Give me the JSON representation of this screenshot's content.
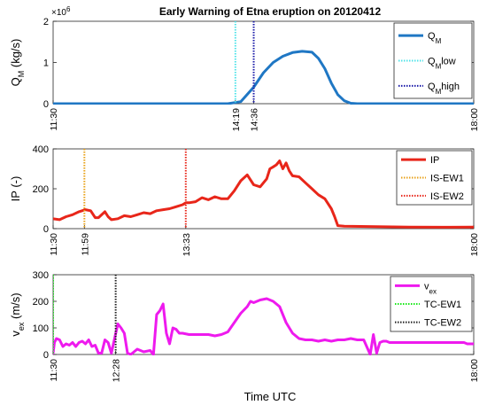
{
  "title": "Early Warning of Etna eruption on 20120412",
  "xlabel": "Time UTC",
  "chart_data": [
    {
      "type": "line",
      "ylabel_main": "Q",
      "ylabel_sub": "M",
      "ylabel_tail": " (kg/s)",
      "exponent_label": "×10",
      "exponent_power": "6",
      "ylim": [
        0,
        2
      ],
      "yticks": [
        "0",
        "1",
        "2"
      ],
      "xlim_hours": [
        11.5,
        18.0
      ],
      "xticks": [
        "11:30",
        "14:19",
        "14:36",
        "18:00"
      ],
      "xtick_hours": [
        11.5,
        14.3167,
        14.6,
        18.0
      ],
      "legend_position": "top-right",
      "series": [
        {
          "name": "Q",
          "name_sub": "M",
          "name_tail": "",
          "style": "solid",
          "color": "#1f77c4",
          "x": [
            11.5,
            14.2,
            14.4,
            14.6,
            14.75,
            14.9,
            15.05,
            15.2,
            15.35,
            15.5,
            15.6,
            15.7,
            15.8,
            15.9,
            16.0,
            16.1,
            16.2,
            16.4,
            18.0
          ],
          "y": [
            0,
            0,
            0.05,
            0.4,
            0.75,
            1.0,
            1.15,
            1.24,
            1.27,
            1.25,
            1.1,
            0.85,
            0.5,
            0.22,
            0.07,
            0.01,
            0,
            0,
            0
          ]
        },
        {
          "name": "Q",
          "name_sub": "M",
          "name_tail": "low",
          "style": "dotted",
          "color": "#4fe3e8",
          "vline_hour": 14.3167
        },
        {
          "name": "Q",
          "name_sub": "M",
          "name_tail": "high",
          "style": "dotted",
          "color": "#1a1aa8",
          "vline_hour": 14.6
        }
      ]
    },
    {
      "type": "line",
      "ylabel_main": "IP (-)",
      "ylabel_sub": "",
      "ylabel_tail": "",
      "ylim": [
        0,
        400
      ],
      "yticks": [
        "0",
        "200",
        "400"
      ],
      "xlim_hours": [
        11.5,
        18.0
      ],
      "xticks": [
        "11:30",
        "11:59",
        "13:33",
        "18:00"
      ],
      "xtick_hours": [
        11.5,
        11.9833,
        13.55,
        18.0
      ],
      "legend_position": "top-right",
      "series": [
        {
          "name": "IP",
          "name_sub": "",
          "name_tail": "",
          "style": "solid",
          "color": "#e8261a",
          "x": [
            11.5,
            11.6,
            11.7,
            11.8,
            11.9,
            12.0,
            12.08,
            12.15,
            12.2,
            12.3,
            12.35,
            12.4,
            12.5,
            12.6,
            12.7,
            12.8,
            12.9,
            13.0,
            13.1,
            13.2,
            13.3,
            13.4,
            13.5,
            13.55,
            13.6,
            13.7,
            13.8,
            13.9,
            14.0,
            14.1,
            14.2,
            14.3,
            14.4,
            14.5,
            14.6,
            14.7,
            14.8,
            14.85,
            14.9,
            14.95,
            15.0,
            15.05,
            15.1,
            15.15,
            15.2,
            15.3,
            15.4,
            15.5,
            15.6,
            15.7,
            15.8,
            15.85,
            15.9,
            16.0,
            16.5,
            17.0,
            17.5,
            18.0
          ],
          "y": [
            50,
            45,
            60,
            70,
            85,
            95,
            90,
            55,
            55,
            85,
            60,
            45,
            50,
            65,
            60,
            70,
            80,
            75,
            90,
            95,
            100,
            110,
            120,
            130,
            130,
            135,
            155,
            145,
            160,
            150,
            150,
            190,
            240,
            270,
            220,
            210,
            250,
            300,
            310,
            320,
            340,
            300,
            330,
            290,
            265,
            260,
            230,
            200,
            170,
            150,
            100,
            60,
            15,
            12,
            10,
            8,
            7,
            8
          ]
        },
        {
          "name": "IS-EW1",
          "name_sub": "",
          "name_tail": "",
          "style": "dotted",
          "color": "#e8a21a",
          "vline_hour": 11.9833
        },
        {
          "name": "IS-EW2",
          "name_sub": "",
          "name_tail": "",
          "style": "dotted",
          "color": "#e8261a",
          "vline_hour": 13.55
        }
      ]
    },
    {
      "type": "line",
      "ylabel_main": "v",
      "ylabel_sub": "ex",
      "ylabel_tail": " (m/s)",
      "ylim": [
        0,
        300
      ],
      "yticks": [
        "0",
        "100",
        "200",
        "300"
      ],
      "xlim_hours": [
        11.5,
        18.0
      ],
      "xticks": [
        "11:30",
        "12:28",
        "18:00"
      ],
      "xtick_hours": [
        11.5,
        12.4667,
        18.0
      ],
      "legend_position": "top-right",
      "series": [
        {
          "name": "v",
          "name_sub": "ex",
          "name_tail": "",
          "style": "solid",
          "color": "#ee1aee",
          "x": [
            11.5,
            11.52,
            11.55,
            11.6,
            11.65,
            11.7,
            11.75,
            11.8,
            11.85,
            11.9,
            11.95,
            12.0,
            12.05,
            12.1,
            12.15,
            12.2,
            12.25,
            12.3,
            12.35,
            12.4,
            12.45,
            12.5,
            12.55,
            12.6,
            12.65,
            12.7,
            12.8,
            12.9,
            13.0,
            13.05,
            13.1,
            13.15,
            13.2,
            13.25,
            13.3,
            13.35,
            13.4,
            13.45,
            13.5,
            13.6,
            13.7,
            13.8,
            13.9,
            14.0,
            14.1,
            14.2,
            14.3,
            14.4,
            14.5,
            14.55,
            14.6,
            14.7,
            14.8,
            14.9,
            15.0,
            15.1,
            15.2,
            15.3,
            15.4,
            15.5,
            15.6,
            15.7,
            15.8,
            15.9,
            16.0,
            16.1,
            16.2,
            16.3,
            16.4,
            16.45,
            16.5,
            16.55,
            16.6,
            16.65,
            16.7,
            17.0,
            17.5,
            17.85,
            17.9,
            17.95,
            18.0
          ],
          "y": [
            5,
            45,
            60,
            55,
            30,
            40,
            35,
            45,
            30,
            45,
            50,
            40,
            55,
            30,
            35,
            5,
            5,
            55,
            45,
            5,
            60,
            115,
            100,
            80,
            5,
            0,
            20,
            10,
            15,
            0,
            150,
            165,
            190,
            80,
            40,
            100,
            95,
            80,
            80,
            75,
            75,
            75,
            75,
            70,
            75,
            85,
            120,
            155,
            180,
            200,
            195,
            205,
            210,
            200,
            180,
            120,
            80,
            60,
            55,
            55,
            50,
            55,
            50,
            55,
            55,
            60,
            55,
            55,
            0,
            75,
            5,
            45,
            50,
            50,
            45,
            45,
            45,
            45,
            40,
            40,
            40
          ]
        },
        {
          "name": "TC-EW1",
          "name_sub": "",
          "name_tail": "",
          "style": "dotted",
          "color": "#1ae81a",
          "vline_hour": 11.5
        },
        {
          "name": "TC-EW2",
          "name_sub": "",
          "name_tail": "",
          "style": "dotted",
          "color": "#222222",
          "vline_hour": 12.4667
        }
      ]
    }
  ]
}
